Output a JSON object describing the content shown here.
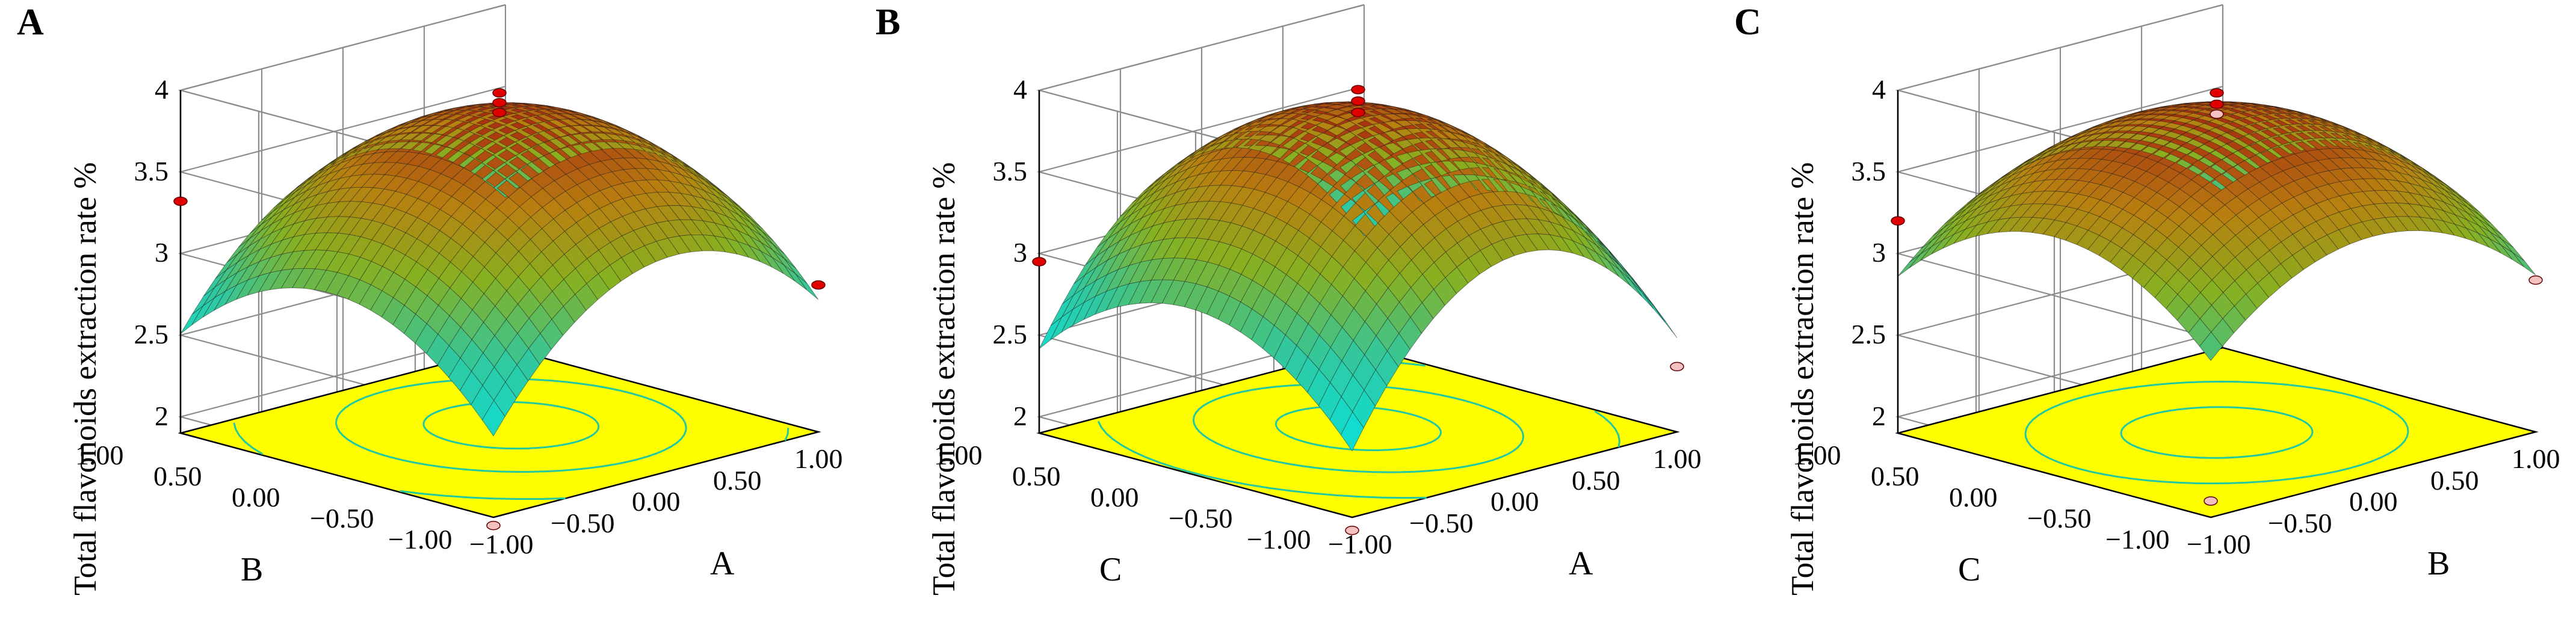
{
  "chart_data": [
    {
      "type": "surface",
      "panel_label": "A",
      "zlabel": "Total flavonoids extraction rate %",
      "zlim": [
        1.9,
        4.0
      ],
      "zticks": [
        "2",
        "2.5",
        "3",
        "3.5",
        "4"
      ],
      "x_axis": {
        "name": "A",
        "ticks": [
          "-1.00",
          "-0.50",
          "0.00",
          "0.50",
          "1.00"
        ]
      },
      "y_axis": {
        "name": "B",
        "ticks": [
          "-1.00",
          "-0.50",
          "0.00",
          "0.50",
          "1.00"
        ]
      },
      "surface": {
        "peak_x": 0.12,
        "peak_y": 0.05,
        "peak_z": 3.82,
        "curv_x": 0.65,
        "curv_y": 0.55
      },
      "design_points": [
        {
          "x": 0.0,
          "y": 0.0,
          "z": 3.98
        },
        {
          "x": 0.0,
          "y": 0.0,
          "z": 3.92
        },
        {
          "x": 0.0,
          "y": 0.0,
          "z": 3.86
        },
        {
          "x": -1.0,
          "y": 1.0,
          "z": 3.32
        },
        {
          "x": 1.0,
          "y": -1.0,
          "z": 2.8
        },
        {
          "x": -1.0,
          "y": -1.0,
          "z": 1.85
        }
      ],
      "floor_color": "#ffff00",
      "contour_color": "#22c8a0"
    },
    {
      "type": "surface",
      "panel_label": "B",
      "zlabel": "Total flavonoids extraction rate %",
      "zlim": [
        1.9,
        4.0
      ],
      "zticks": [
        "2",
        "2.5",
        "3",
        "3.5",
        "4"
      ],
      "x_axis": {
        "name": "A",
        "ticks": [
          "-1.00",
          "-0.50",
          "0.00",
          "0.50",
          "1.00"
        ]
      },
      "y_axis": {
        "name": "C",
        "ticks": [
          "-1.00",
          "-0.50",
          "0.00",
          "0.50",
          "1.00"
        ]
      },
      "surface": {
        "peak_x": 0.05,
        "peak_y": 0.05,
        "peak_z": 3.85,
        "curv_x": 0.85,
        "curv_y": 0.55
      },
      "design_points": [
        {
          "x": 0.0,
          "y": 0.0,
          "z": 4.0
        },
        {
          "x": 0.0,
          "y": 0.0,
          "z": 3.93
        },
        {
          "x": 0.0,
          "y": 0.0,
          "z": 3.86
        },
        {
          "x": -1.0,
          "y": 1.0,
          "z": 2.95
        },
        {
          "x": 1.0,
          "y": -1.0,
          "z": 2.3
        },
        {
          "x": -1.0,
          "y": -1.0,
          "z": 1.82
        }
      ],
      "floor_color": "#ffff00",
      "contour_color": "#22c8a0"
    },
    {
      "type": "surface",
      "panel_label": "C",
      "zlabel": "Total flavonoids extraction rate %",
      "zlim": [
        1.9,
        4.0
      ],
      "zticks": [
        "2",
        "2.5",
        "3",
        "3.5",
        "4"
      ],
      "x_axis": {
        "name": "B",
        "ticks": [
          "-1.00",
          "-0.50",
          "0.00",
          "0.50",
          "1.00"
        ]
      },
      "y_axis": {
        "name": "C",
        "ticks": [
          "-1.00",
          "-0.50",
          "0.00",
          "0.50",
          "1.00"
        ]
      },
      "surface": {
        "peak_x": 0.0,
        "peak_y": 0.0,
        "peak_z": 3.86,
        "curv_x": 0.5,
        "curv_y": 0.5
      },
      "design_points": [
        {
          "x": 0.0,
          "y": 0.0,
          "z": 3.98
        },
        {
          "x": 0.0,
          "y": 0.0,
          "z": 3.91
        },
        {
          "x": 0.0,
          "y": 0.0,
          "z": 3.85
        },
        {
          "x": -1.0,
          "y": 1.0,
          "z": 3.2
        },
        {
          "x": 1.0,
          "y": -1.0,
          "z": 2.83
        },
        {
          "x": -1.0,
          "y": -1.0,
          "z": 2.0
        }
      ],
      "floor_color": "#ffff00",
      "contour_color": "#22c8a0"
    }
  ]
}
